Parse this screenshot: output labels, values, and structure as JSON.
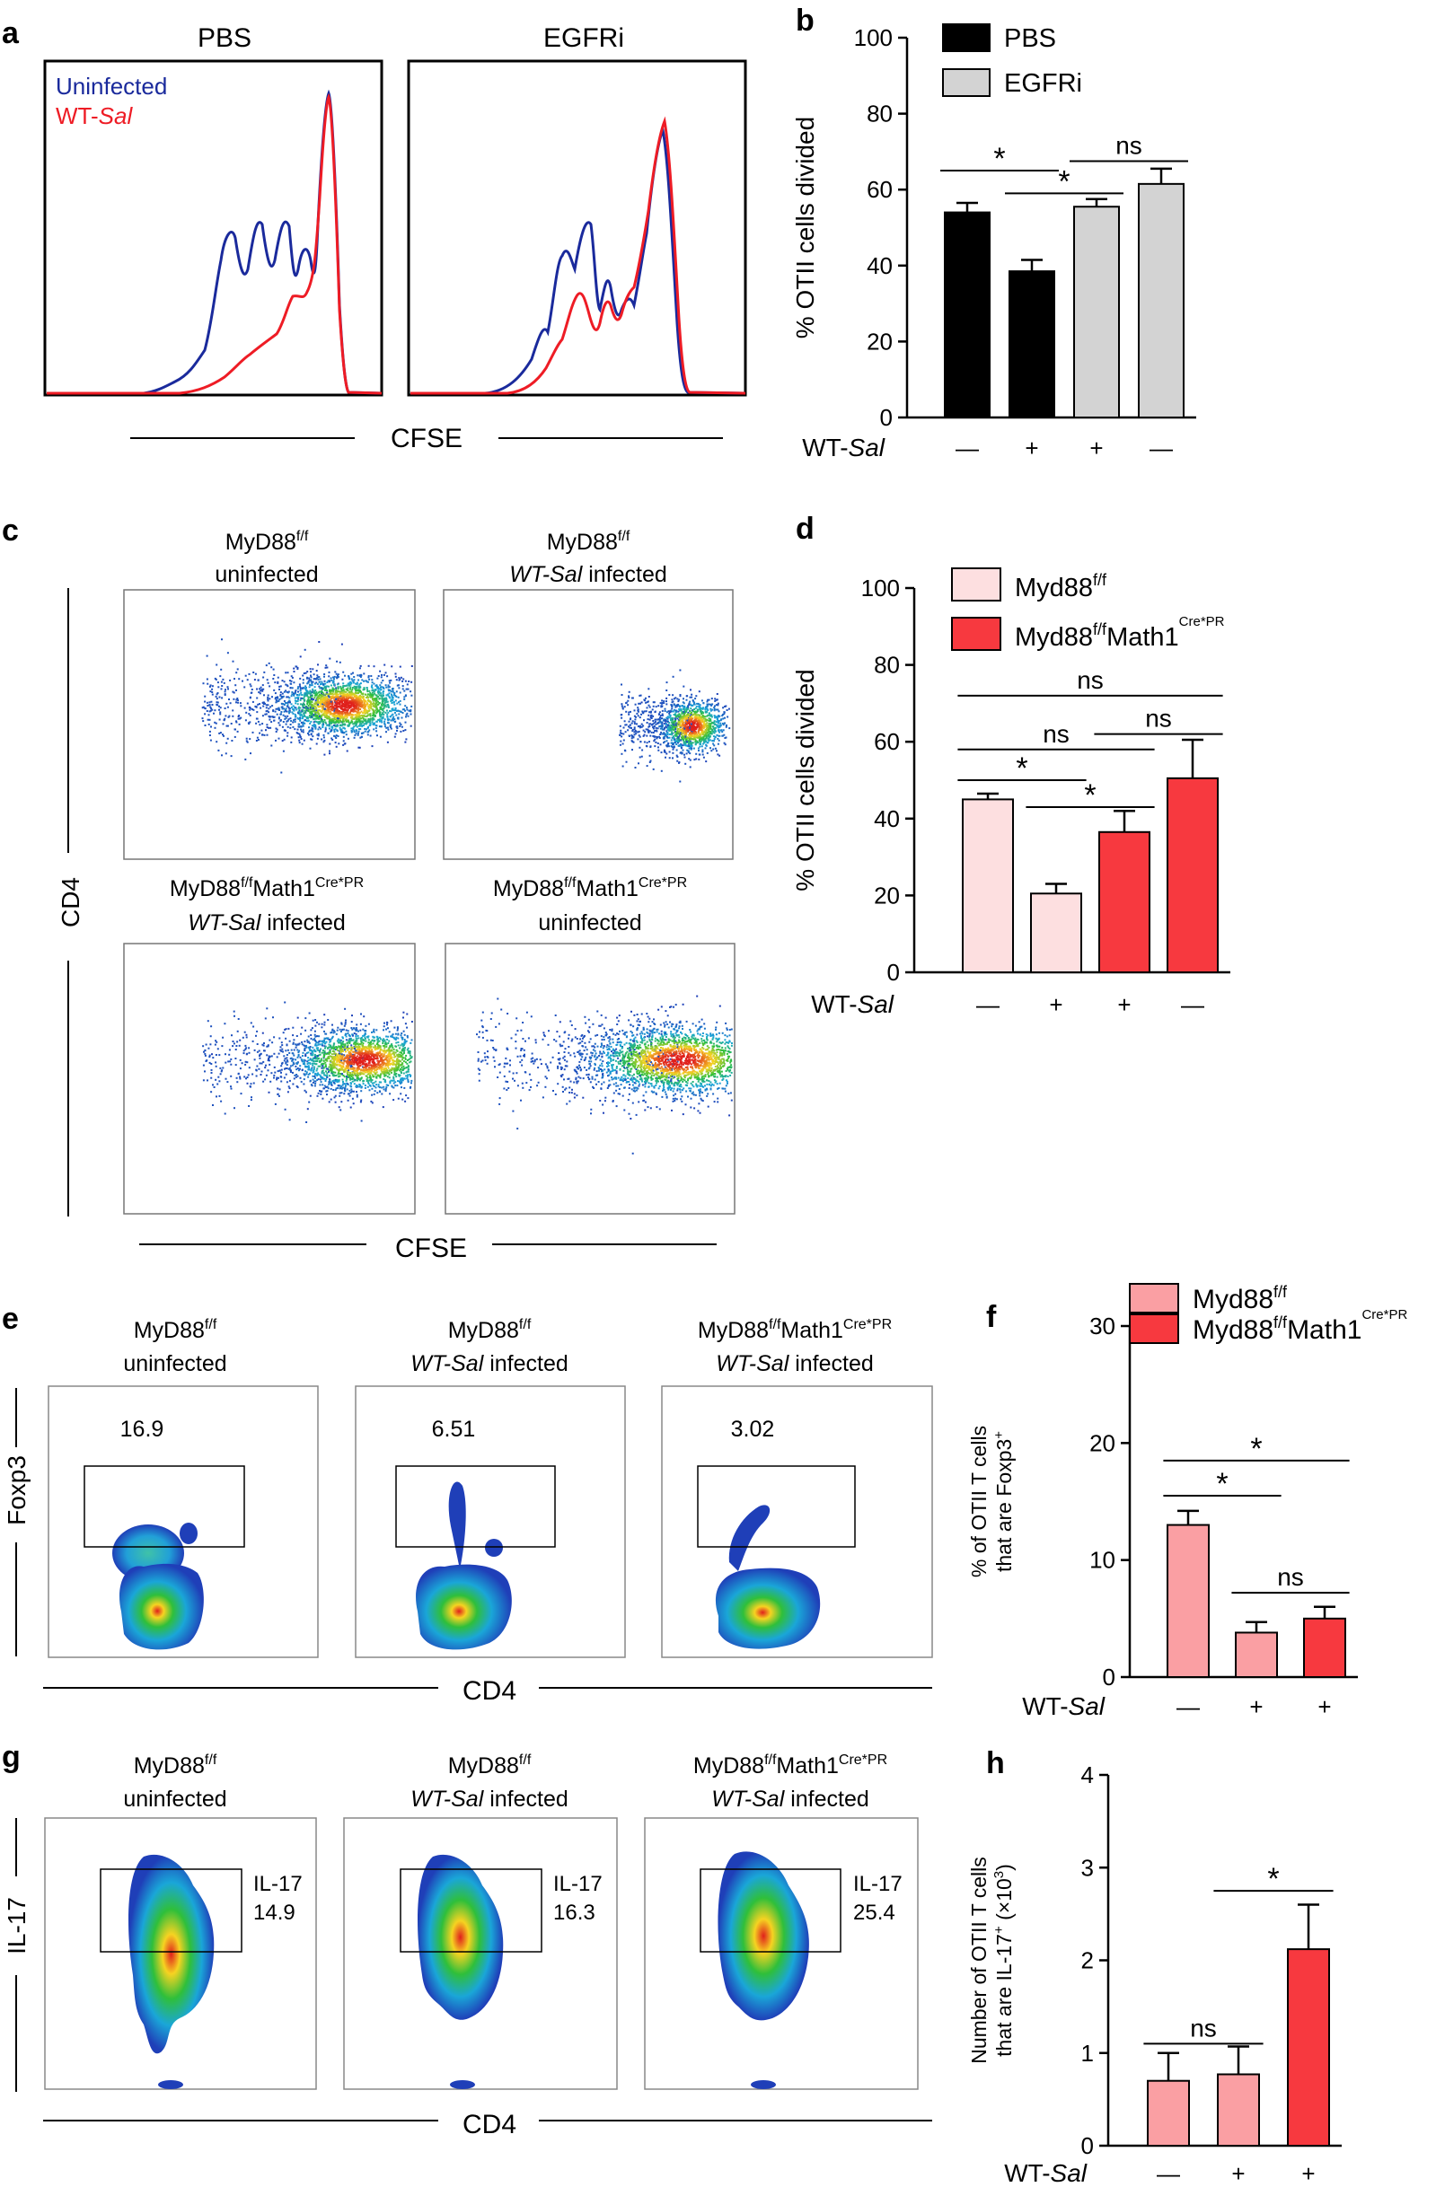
{
  "panels": {
    "a": {
      "letter": "a",
      "plots": [
        {
          "title": "PBS"
        },
        {
          "title": "EGFRi"
        }
      ],
      "legend": [
        {
          "label": "Uninfected",
          "color": "#1a2a9c"
        },
        {
          "label_prefix": "WT-",
          "label_italic": "Sal",
          "color": "#ee1c25"
        }
      ],
      "xlabel": "CFSE"
    },
    "c": {
      "letter": "c",
      "ylabel": "CD4",
      "xlabel": "CFSE",
      "plots": [
        {
          "title_main": "MyD88",
          "title_sup": "f/f",
          "title_line2": "uninfected"
        },
        {
          "title_main": "MyD88",
          "title_sup": "f/f",
          "title_line2_italic": "WT-Sal",
          "title_line2_rest": " infected"
        },
        {
          "title_main": "MyD88",
          "title_sup": "f/f",
          "title_main2": "Math1",
          "title_sup2": "Cre*PR",
          "title_line2_italic": "WT-Sal",
          "title_line2_rest": " infected"
        },
        {
          "title_main": "MyD88",
          "title_sup": "f/f",
          "title_main2": "Math1",
          "title_sup2": "Cre*PR",
          "title_line2": "uninfected"
        }
      ]
    },
    "e": {
      "letter": "e",
      "ylabel": "Foxp3",
      "xlabel": "CD4",
      "plots": [
        {
          "title_main": "MyD88",
          "title_sup": "f/f",
          "title_line2": "uninfected",
          "gate_value": "16.9"
        },
        {
          "title_main": "MyD88",
          "title_sup": "f/f",
          "title_line2_italic": "WT-Sal",
          "title_line2_rest": " infected",
          "gate_value": "6.51"
        },
        {
          "title_main": "MyD88",
          "title_sup": "f/f",
          "title_main2": "Math1",
          "title_sup2": "Cre*PR",
          "title_line2_italic": "WT-Sal",
          "title_line2_rest": " infected",
          "gate_value": "3.02"
        }
      ]
    },
    "g": {
      "letter": "g",
      "ylabel": "IL-17",
      "xlabel": "CD4",
      "plots": [
        {
          "title_main": "MyD88",
          "title_sup": "f/f",
          "title_line2": "uninfected",
          "gate_label": "IL-17",
          "gate_value": "14.9"
        },
        {
          "title_main": "MyD88",
          "title_sup": "f/f",
          "title_line2_italic": "WT-Sal",
          "title_line2_rest": " infected",
          "gate_label": "IL-17",
          "gate_value": "16.3"
        },
        {
          "title_main": "MyD88",
          "title_sup": "f/f",
          "title_main2": "Math1",
          "title_sup2": "Cre*PR",
          "title_line2_italic": "WT-Sal",
          "title_line2_rest": " infected",
          "gate_label": "IL-17",
          "gate_value": "25.4"
        }
      ]
    }
  },
  "chart_data": [
    {
      "id": "b",
      "letter": "b",
      "type": "bar",
      "ylabel": "% OTII cells divided",
      "ylim": [
        0,
        100
      ],
      "yticks": [
        "0",
        "20",
        "40",
        "60",
        "80",
        "100"
      ],
      "x_row_label_prefix": "WT-",
      "x_row_label_italic": "Sal",
      "categories": [
        "—",
        "+",
        "+",
        "—"
      ],
      "values": [
        54,
        38.5,
        55.5,
        61.5
      ],
      "errors": [
        2.5,
        3,
        2,
        4
      ],
      "colors": [
        "#000000",
        "#000000",
        "#d3d3d3",
        "#d3d3d3"
      ],
      "legend": [
        {
          "label": "PBS",
          "color": "#000000"
        },
        {
          "label": "EGFRi",
          "color": "#d3d3d3"
        }
      ],
      "significance": [
        {
          "from": 0,
          "to": 1,
          "y": 65,
          "label": "*"
        },
        {
          "from": 1,
          "to": 2,
          "y": 59,
          "label": "*"
        },
        {
          "from": 2,
          "to": 3,
          "y": 67.5,
          "label": "ns"
        }
      ]
    },
    {
      "id": "d",
      "letter": "d",
      "type": "bar",
      "ylabel": "% OTII cells divided",
      "ylim": [
        0,
        100
      ],
      "yticks": [
        "0",
        "20",
        "40",
        "60",
        "80",
        "100"
      ],
      "x_row_label_prefix": "WT-",
      "x_row_label_italic": "Sal",
      "categories": [
        "—",
        "+",
        "+",
        "—"
      ],
      "values": [
        45,
        20.5,
        36.5,
        50.5
      ],
      "errors": [
        1.5,
        2.5,
        5.5,
        10
      ],
      "colors": [
        "#fddfe0",
        "#fddfe0",
        "#f7393f",
        "#f7393f"
      ],
      "legend": [
        {
          "label": "Myd88",
          "sup": "f/f",
          "color": "#fddfe0"
        },
        {
          "label": "Myd88",
          "sup": "f/f",
          "label2": "Math1",
          "sup2": "Cre*PR",
          "color": "#f7393f"
        }
      ],
      "significance": [
        {
          "from": 0,
          "to": 3,
          "y": 72,
          "label": "ns"
        },
        {
          "from": 0,
          "to": 2,
          "y": 58,
          "label": "ns"
        },
        {
          "from": 2,
          "to": 3,
          "y": 62,
          "label": "ns"
        },
        {
          "from": 0,
          "to": 1,
          "y": 50,
          "label": "*"
        },
        {
          "from": 1,
          "to": 2,
          "y": 43,
          "label": "*"
        }
      ]
    },
    {
      "id": "f",
      "letter": "f",
      "type": "bar",
      "ylabel_line1_prefix": "% of OTII T",
      "ylabel_line1_suffix": "cells",
      "ylabel_line2": "that are Foxp3",
      "ylabel_sup": "+",
      "ylim": [
        0,
        30
      ],
      "yticks": [
        "0",
        "10",
        "20",
        "30"
      ],
      "x_row_label_prefix": "WT-",
      "x_row_label_italic": "Sal",
      "categories": [
        "—",
        "+",
        "+"
      ],
      "values": [
        13,
        3.8,
        5
      ],
      "errors": [
        1.2,
        0.9,
        1.0
      ],
      "colors": [
        "#fa9fa3",
        "#fa9fa3",
        "#f7393f"
      ],
      "legend": [
        {
          "label": "Myd88",
          "sup": "f/f",
          "color": "#fa9fa3"
        },
        {
          "label": "Myd88",
          "sup": "f/f",
          "label2": "Math1",
          "sup2": "Cre*PR",
          "color": "#f7393f"
        }
      ],
      "significance": [
        {
          "from": 0,
          "to": 2,
          "y": 18.5,
          "label": "*"
        },
        {
          "from": 0,
          "to": 1,
          "y": 15.5,
          "label": "*"
        },
        {
          "from": 1,
          "to": 2,
          "y": 7.2,
          "label": "ns"
        }
      ]
    },
    {
      "id": "h",
      "letter": "h",
      "type": "bar",
      "ylabel_line1": "Number of OTII T cells",
      "ylabel_line2": "that are IL-17",
      "ylabel_sup": "+",
      "ylabel_suffix": " (×10",
      "ylabel_suffix_sup": "3",
      "ylabel_suffix_end": ")",
      "ylim": [
        0,
        4
      ],
      "yticks": [
        "0",
        "1",
        "2",
        "3",
        "4"
      ],
      "x_row_label_prefix": "WT-",
      "x_row_label_italic": "Sal",
      "categories": [
        "—",
        "+",
        "+"
      ],
      "values": [
        0.7,
        0.77,
        2.12
      ],
      "errors": [
        0.3,
        0.3,
        0.48
      ],
      "colors": [
        "#fa9fa3",
        "#fa9fa3",
        "#f7393f"
      ],
      "significance": [
        {
          "from": 0,
          "to": 1,
          "y": 1.1,
          "label": "ns"
        },
        {
          "from": 1,
          "to": 2,
          "y": 2.75,
          "label": "*"
        }
      ]
    }
  ]
}
